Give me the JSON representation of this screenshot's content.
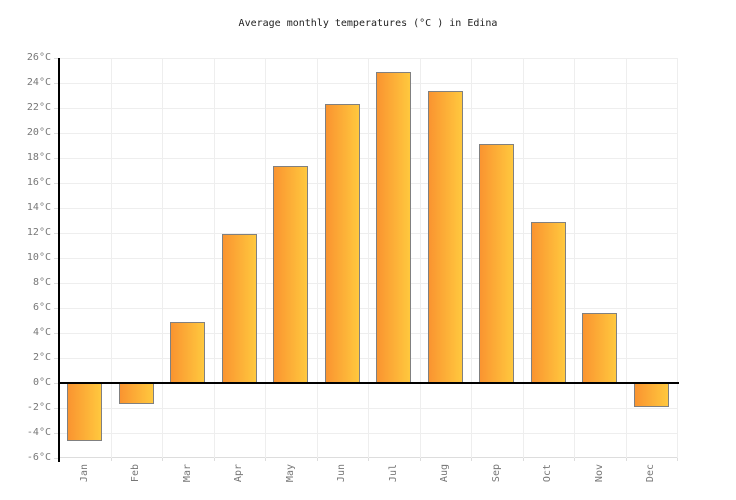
{
  "title": "Average monthly temperatures (°C ) in Edina",
  "chart_data": {
    "type": "bar",
    "title": "Average monthly temperatures (°C ) in Edina",
    "categories": [
      "Jan",
      "Feb",
      "Mar",
      "Apr",
      "May",
      "Jun",
      "Jul",
      "Aug",
      "Sep",
      "Oct",
      "Nov",
      "Dec"
    ],
    "values": [
      -4.6,
      -1.7,
      4.9,
      11.9,
      17.4,
      22.3,
      24.9,
      23.4,
      19.1,
      12.9,
      5.6,
      -1.9
    ],
    "xlabel": "",
    "ylabel": "",
    "ylim": [
      -6,
      26
    ],
    "ytick_step": 2,
    "ytick_suffix": "°C",
    "grid": true,
    "legend": false,
    "colors": {
      "bar_gradient_left": "#FA9430",
      "bar_gradient_right": "#FFC83E",
      "bar_border": "#808080",
      "gridline": "#EEEEEE",
      "boundary": "#DDDDDD",
      "axis": "#000000",
      "label_text": "#777777",
      "title_text": "#222222",
      "background": "#FFFFFF"
    }
  }
}
